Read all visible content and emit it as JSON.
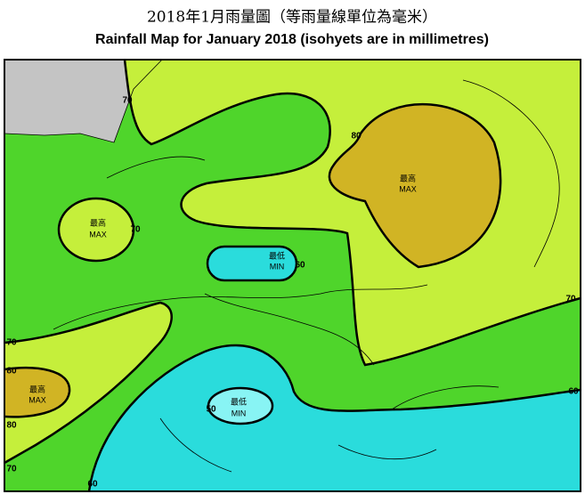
{
  "header": {
    "title_zh": "2018年1月雨量圖（等雨量線單位為毫米）",
    "title_en": "Rainfall Map for January 2018 (isohyets are in millimetres)"
  },
  "extremes": [
    {
      "zh": "最高",
      "en": "MAX"
    },
    {
      "zh": "最高",
      "en": "MAX"
    },
    {
      "zh": "最低",
      "en": "MIN"
    },
    {
      "zh": "最高",
      "en": "MAX"
    },
    {
      "zh": "最低",
      "en": "MIN"
    }
  ],
  "isohyets": [
    70,
    80,
    70,
    60,
    70,
    70,
    80,
    80,
    60,
    50,
    70,
    60
  ]
}
